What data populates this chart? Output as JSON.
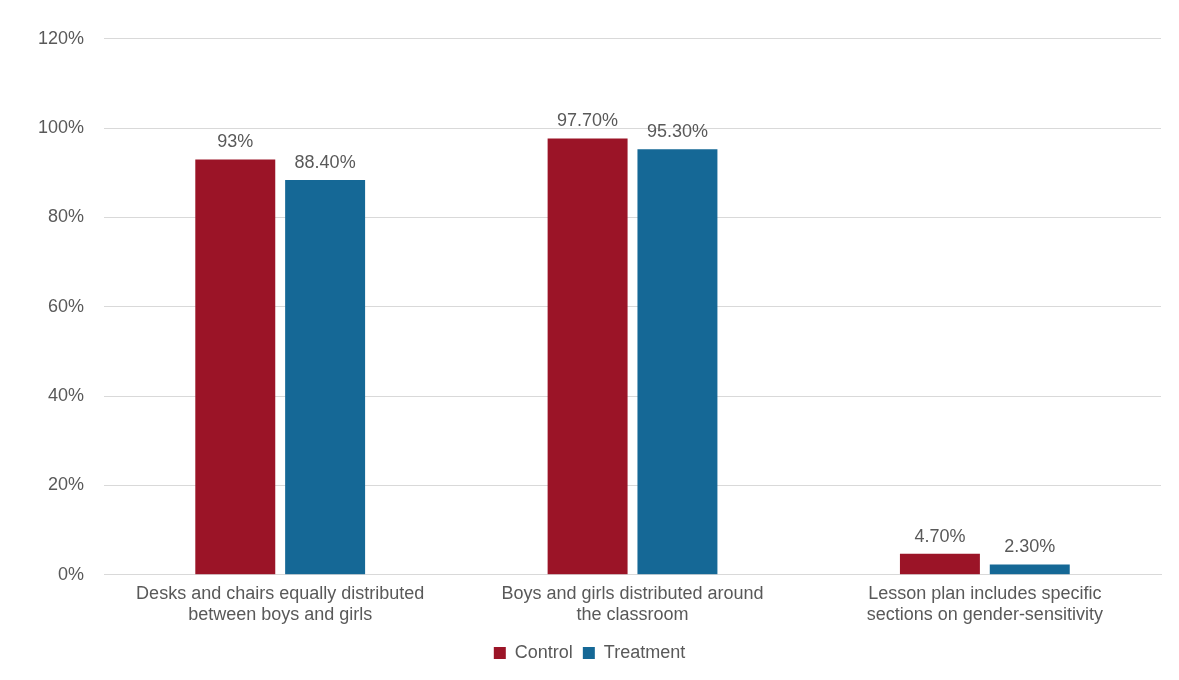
{
  "chart_data": {
    "type": "bar",
    "categories": [
      "Desks and chairs equally distributed between boys and girls",
      "Boys and girls distributed around the classroom",
      "Lesson plan includes specific sections on gender-sensitivity"
    ],
    "series": [
      {
        "name": "Control",
        "color": "#9b1427",
        "values": [
          93,
          97.7,
          4.7
        ],
        "value_labels": [
          "93%",
          "97.70%",
          "4.70%"
        ]
      },
      {
        "name": "Treatment",
        "color": "#156896",
        "values": [
          88.4,
          95.3,
          2.3
        ],
        "value_labels": [
          "88.40%",
          "95.30%",
          "2.30%"
        ]
      }
    ],
    "ylim": [
      0,
      120
    ],
    "yticks": [
      {
        "value": 0,
        "label": "0%"
      },
      {
        "value": 20,
        "label": "20%"
      },
      {
        "value": 40,
        "label": "40%"
      },
      {
        "value": 60,
        "label": "60%"
      },
      {
        "value": 80,
        "label": "80%"
      },
      {
        "value": 100,
        "label": "100%"
      },
      {
        "value": 120,
        "label": "120%"
      }
    ],
    "grid": "y",
    "legend": "bottom"
  }
}
